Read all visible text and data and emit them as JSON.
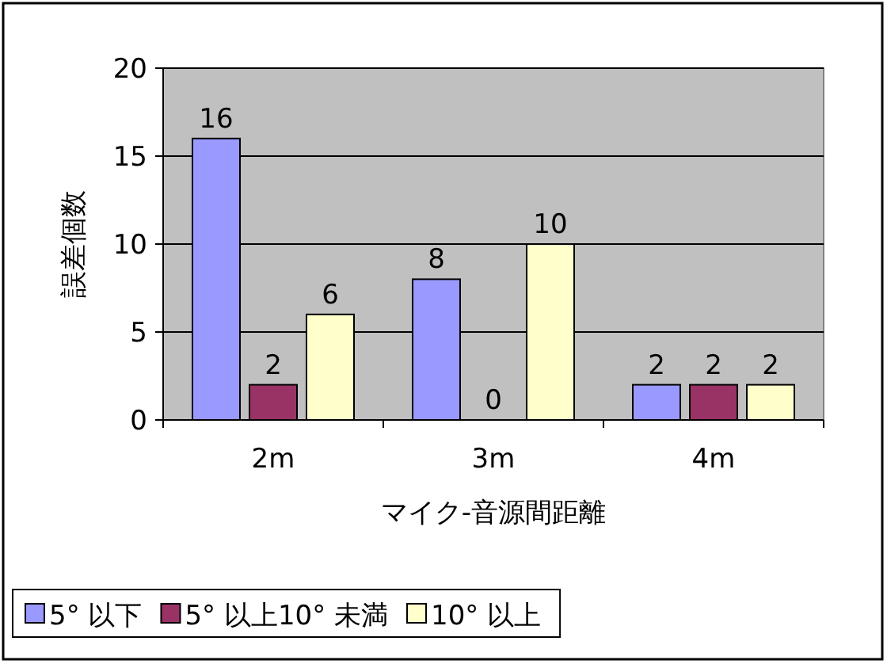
{
  "chart_data": {
    "type": "bar",
    "xlabel": "マイク-音源間距離",
    "ylabel": "誤差個数",
    "categories": [
      "2m",
      "3m",
      "4m"
    ],
    "series": [
      {
        "name": "5° 以下",
        "color": "#9999ff",
        "values": [
          16,
          8,
          2
        ]
      },
      {
        "name": "5° 以上10° 未満",
        "color": "#993366",
        "values": [
          2,
          0,
          2
        ]
      },
      {
        "name": "10° 以上",
        "color": "#ffffcc",
        "values": [
          6,
          10,
          2
        ]
      }
    ],
    "ylim": [
      0,
      20
    ],
    "yticks": [
      0,
      5,
      10,
      15,
      20
    ],
    "grid": "y",
    "legend": "bottom",
    "data_labels": true
  }
}
